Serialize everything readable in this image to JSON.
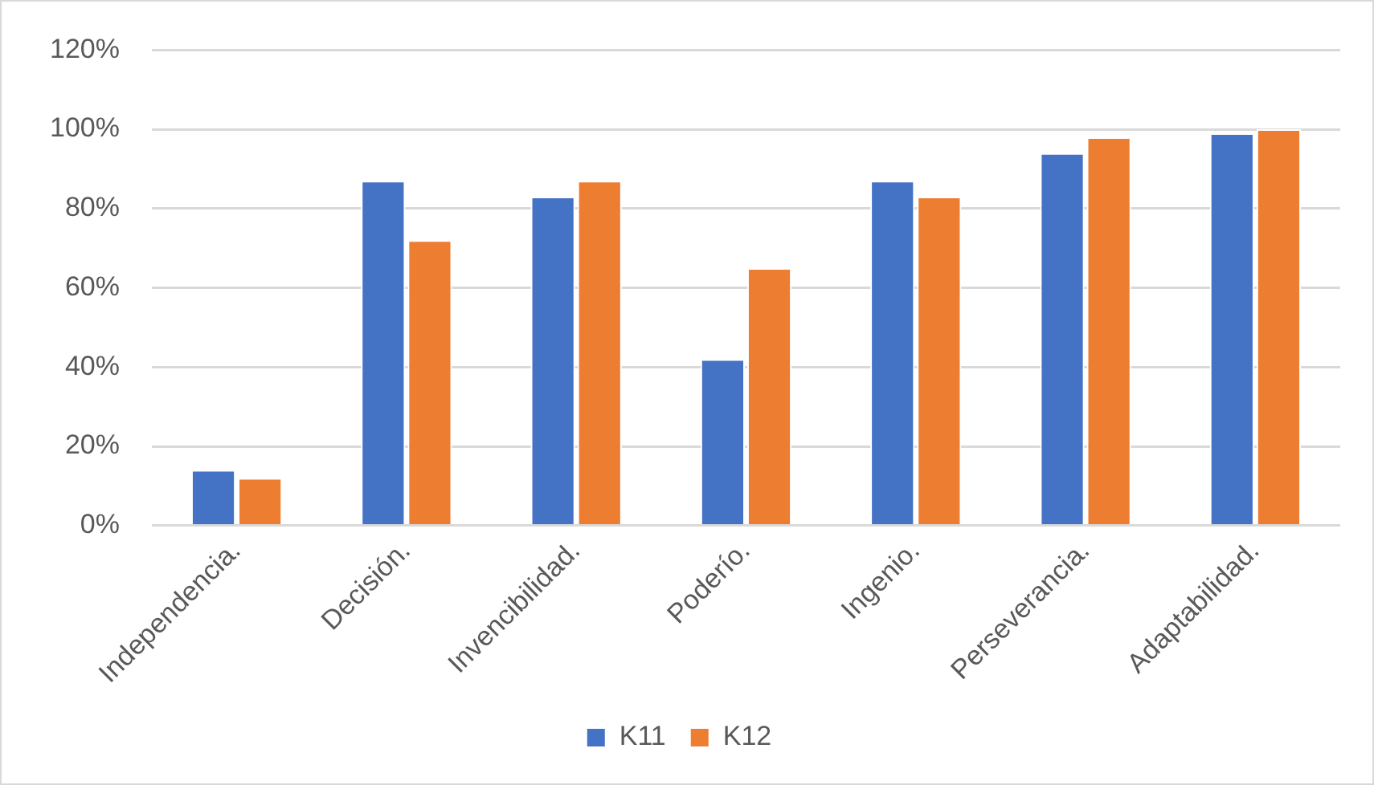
{
  "chart_data": {
    "type": "bar",
    "categories": [
      "Independencia.",
      "Decisión.",
      "Invencibilidad.",
      "Poderío.",
      "Ingenio.",
      "Perseverancia.",
      "Adaptabilidad."
    ],
    "series": [
      {
        "name": "K11",
        "color": "#4472c4",
        "values": [
          14,
          87,
          83,
          42,
          87,
          94,
          99
        ]
      },
      {
        "name": "K12",
        "color": "#ed7d31",
        "values": [
          12,
          72,
          87,
          65,
          83,
          98,
          100
        ]
      }
    ],
    "ylim": [
      0,
      120
    ],
    "yticks": [
      {
        "value": 0,
        "label": "0%"
      },
      {
        "value": 20,
        "label": "20%"
      },
      {
        "value": 40,
        "label": "40%"
      },
      {
        "value": 60,
        "label": "60%"
      },
      {
        "value": 80,
        "label": "80%"
      },
      {
        "value": 100,
        "label": "100%"
      },
      {
        "value": 120,
        "label": "120%"
      }
    ],
    "grid": "y",
    "legend": "bottom"
  }
}
